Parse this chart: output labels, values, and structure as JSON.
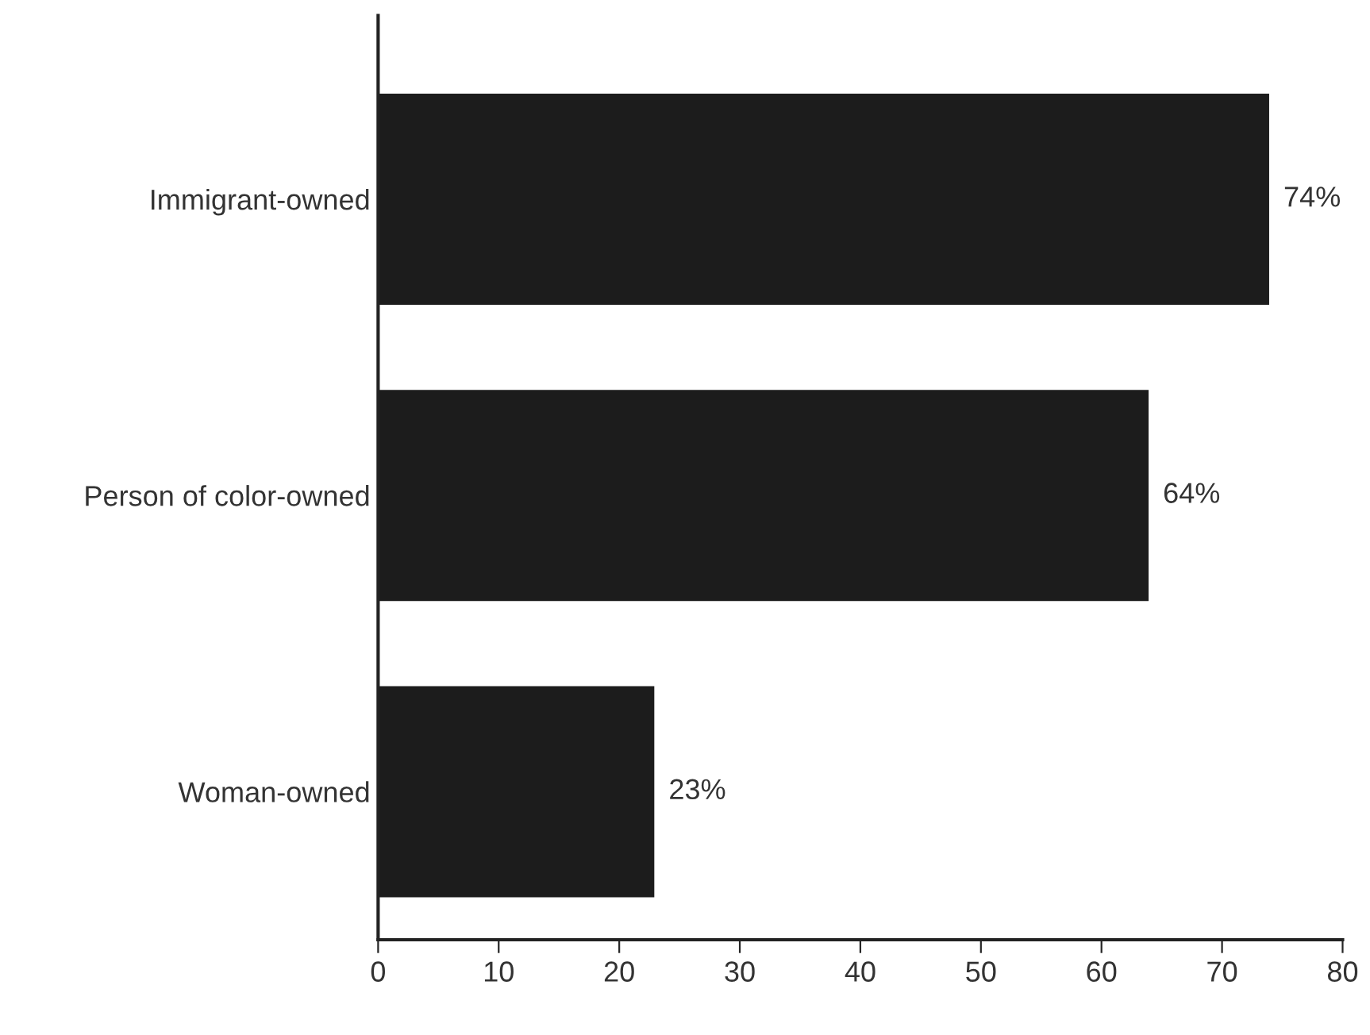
{
  "chart_data": {
    "type": "bar",
    "orientation": "horizontal",
    "categories": [
      "Immigrant-owned",
      "Person of color-owned",
      "Woman-owned"
    ],
    "values": [
      74,
      64,
      23
    ],
    "color": "#1c1c1c",
    "value_labels": [
      "74%",
      "64%",
      "23%"
    ],
    "xlim": [
      0,
      80
    ],
    "xticks": [
      0,
      10,
      20,
      30,
      40,
      50,
      60,
      70,
      80
    ],
    "grid": false,
    "legend": false
  }
}
